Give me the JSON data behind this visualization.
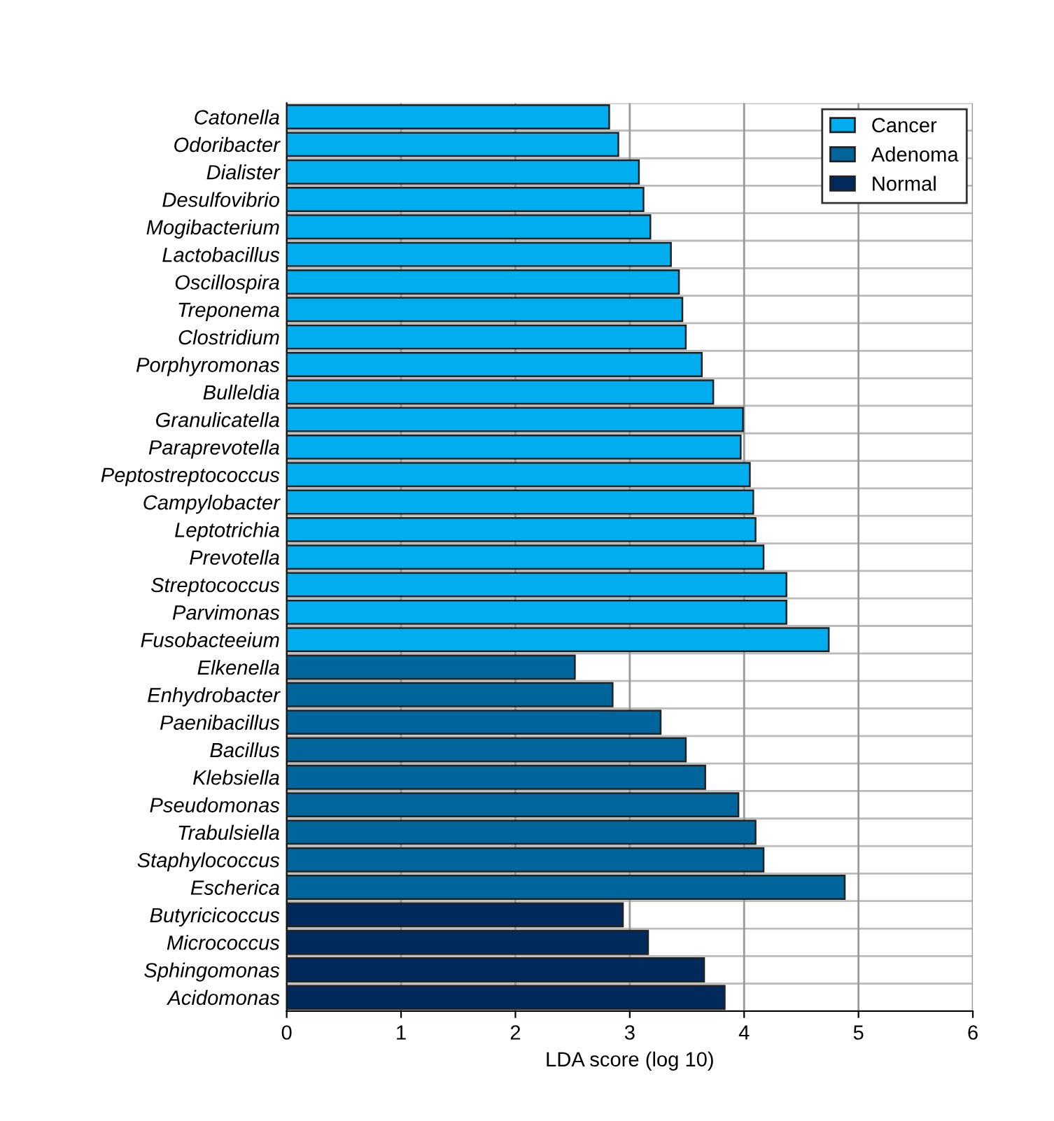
{
  "chart_data": {
    "type": "bar",
    "orientation": "horizontal",
    "xlabel": "LDA score (log 10)",
    "categories": [
      "Catonella",
      "Odoribacter",
      "Dialister",
      "Desulfovibrio",
      "Mogibacterium",
      "Lactobacillus",
      "Oscillospira",
      "Treponema",
      "Clostridium",
      "Porphyromonas",
      "Bulleldia",
      "Granulicatella",
      "Paraprevotella",
      "Peptostreptococcus",
      "Campylobacter",
      "Leptotrichia",
      "Prevotella",
      "Streptococcus",
      "Parvimonas",
      "Fusobacteeium",
      "Elkenella",
      "Enhydrobacter",
      "Paenibacillus",
      "Bacillus",
      "Klebsiella",
      "Pseudomonas",
      "Trabulsiella",
      "Staphylococcus",
      "Escherica",
      "Butyricicoccus",
      "Micrococcus",
      "Sphingomonas",
      "Acidomonas"
    ],
    "series": [
      {
        "name": "Cancer",
        "color": "#00adef",
        "values": [
          2.82,
          2.9,
          3.08,
          3.12,
          3.18,
          3.36,
          3.43,
          3.46,
          3.49,
          3.63,
          3.73,
          3.99,
          3.97,
          4.05,
          4.08,
          4.1,
          4.17,
          4.37,
          4.37,
          4.74,
          null,
          null,
          null,
          null,
          null,
          null,
          null,
          null,
          null,
          null,
          null,
          null,
          null
        ]
      },
      {
        "name": "Adenoma",
        "color": "#00659a",
        "values": [
          null,
          null,
          null,
          null,
          null,
          null,
          null,
          null,
          null,
          null,
          null,
          null,
          null,
          null,
          null,
          null,
          null,
          null,
          null,
          null,
          2.52,
          2.85,
          3.27,
          3.49,
          3.66,
          3.95,
          4.1,
          4.17,
          4.88,
          null,
          null,
          null,
          null
        ]
      },
      {
        "name": "Normal",
        "color": "#002a5c",
        "values": [
          null,
          null,
          null,
          null,
          null,
          null,
          null,
          null,
          null,
          null,
          null,
          null,
          null,
          null,
          null,
          null,
          null,
          null,
          null,
          null,
          null,
          null,
          null,
          null,
          null,
          null,
          null,
          null,
          null,
          2.94,
          3.16,
          3.65,
          3.83
        ]
      }
    ],
    "xlim": [
      0,
      6
    ],
    "xticks": [
      0,
      1,
      2,
      3,
      4,
      5,
      6
    ],
    "grid": true,
    "legend": "top right"
  }
}
